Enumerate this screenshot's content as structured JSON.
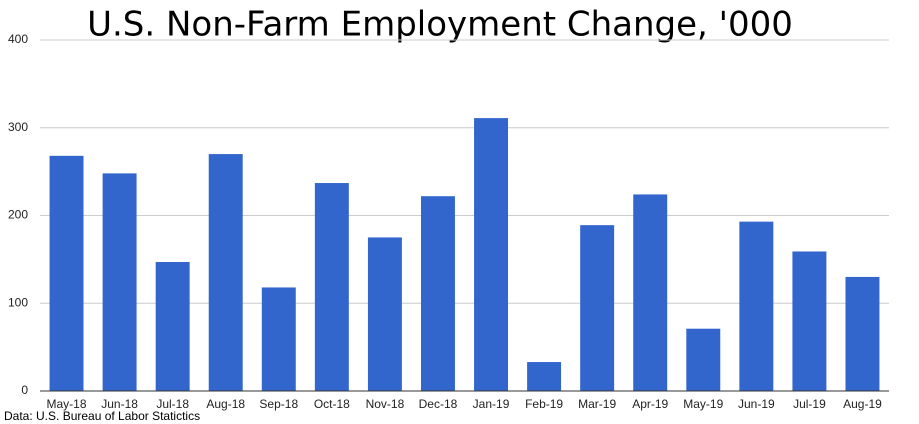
{
  "chart_data": {
    "type": "bar",
    "title": "U.S. Non-Farm Employment Change, '000",
    "source": "Data: U.S. Bureau of Labor Statictics",
    "categories": [
      "May-18",
      "Jun-18",
      "Jul-18",
      "Aug-18",
      "Sep-18",
      "Oct-18",
      "Nov-18",
      "Dec-18",
      "Jan-19",
      "Feb-19",
      "Mar-19",
      "Apr-19",
      "May-19",
      "Jun-19",
      "Jul-19",
      "Aug-19"
    ],
    "values": [
      268,
      248,
      147,
      270,
      118,
      237,
      175,
      222,
      311,
      33,
      189,
      224,
      71,
      193,
      159,
      130
    ],
    "color": "#3366cc",
    "ylim": [
      0,
      400
    ],
    "yticks": [
      0,
      100,
      200,
      300,
      400
    ],
    "grid": true
  }
}
